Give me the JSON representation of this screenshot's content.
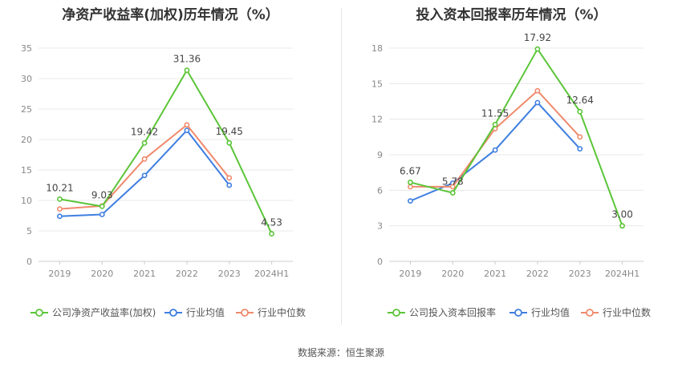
{
  "chart_data": [
    {
      "type": "line",
      "title": "净资产收益率(加权)历年情况（%）",
      "categories": [
        "2019",
        "2020",
        "2021",
        "2022",
        "2023",
        "2024H1"
      ],
      "ylim": [
        0,
        35
      ],
      "yticks": [
        0,
        5,
        10,
        15,
        20,
        25,
        30,
        35
      ],
      "grid": true,
      "legend_position": "bottom",
      "series": [
        {
          "name": "公司净资产收益率(加权)",
          "color": "#5bc538",
          "values": [
            10.21,
            9.03,
            19.42,
            31.36,
            19.45,
            4.53
          ],
          "labels": [
            "10.21",
            "9.03",
            "19.42",
            "31.36",
            "19.45",
            "4.53"
          ]
        },
        {
          "name": "行业均值",
          "color": "#3f7ee0",
          "values": [
            7.4,
            7.7,
            14.1,
            21.5,
            12.5,
            null
          ]
        },
        {
          "name": "行业中位数",
          "color": "#f08a6c",
          "values": [
            8.6,
            9.1,
            16.8,
            22.4,
            13.7,
            null
          ]
        }
      ]
    },
    {
      "type": "line",
      "title": "投入资本回报率历年情况（%）",
      "categories": [
        "2019",
        "2020",
        "2021",
        "2022",
        "2023",
        "2024H1"
      ],
      "ylim": [
        0,
        18
      ],
      "yticks": [
        0,
        3,
        6,
        9,
        12,
        15,
        18
      ],
      "grid": true,
      "legend_position": "bottom",
      "series": [
        {
          "name": "公司投入资本回报率",
          "color": "#5bc538",
          "values": [
            6.67,
            5.78,
            11.55,
            17.92,
            12.64,
            3.0
          ],
          "labels": [
            "6.67",
            "5.78",
            "11.55",
            "17.92",
            "12.64",
            "3.00"
          ]
        },
        {
          "name": "行业均值",
          "color": "#3f7ee0",
          "values": [
            5.1,
            6.6,
            9.4,
            13.4,
            9.5,
            null
          ]
        },
        {
          "name": "行业中位数",
          "color": "#f08a6c",
          "values": [
            6.3,
            6.3,
            11.2,
            14.4,
            10.5,
            null
          ]
        }
      ]
    }
  ],
  "source_text": "数据来源：恒生聚源"
}
